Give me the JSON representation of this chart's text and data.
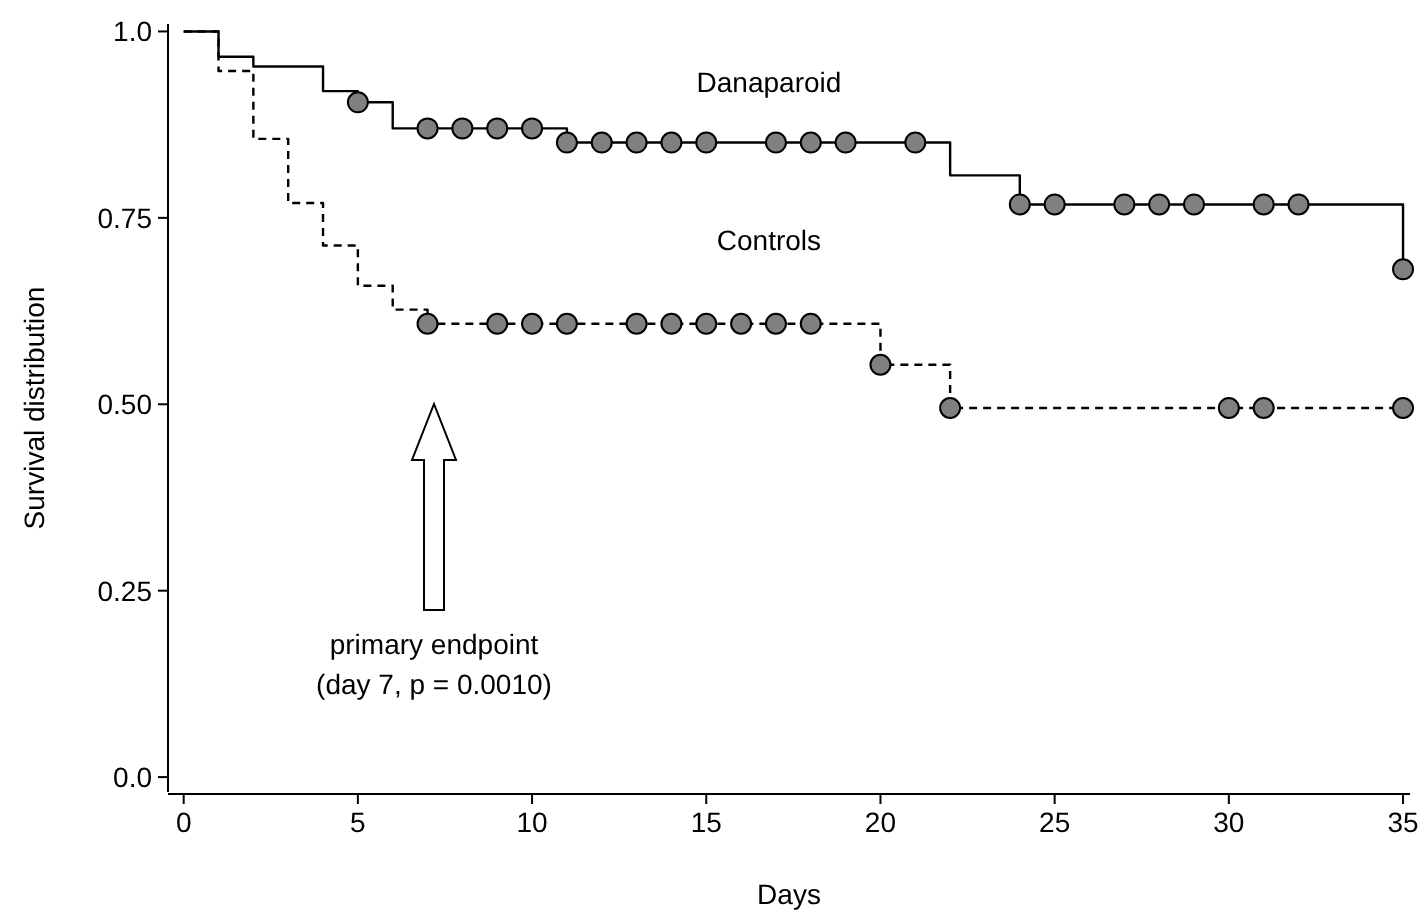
{
  "chart_data": {
    "type": "step",
    "xlabel": "Days",
    "ylabel": "Survival distribution",
    "xlim": [
      -0.45,
      35.2
    ],
    "xticks": [
      0,
      5,
      10,
      15,
      20,
      25,
      30,
      35
    ],
    "ylim": [
      -0.02,
      1.01
    ],
    "yticks": [
      {
        "value": 0,
        "label": "0.0"
      },
      {
        "value": 0.25,
        "label": "0.25"
      },
      {
        "value": 0.5,
        "label": "0.50"
      },
      {
        "value": 0.75,
        "label": "0.75"
      },
      {
        "value": 1,
        "label": "1.0"
      }
    ],
    "grid": false,
    "series": [
      {
        "name": "Danaparoid",
        "color": "#000000",
        "line_style": "solid",
        "marker": "none",
        "x": [
          0,
          1,
          2,
          4,
          5,
          6,
          11,
          22,
          24,
          35
        ],
        "values": [
          1,
          0.966,
          0.953,
          0.92,
          0.905,
          0.87,
          0.851,
          0.807,
          0.768,
          0.681
        ]
      },
      {
        "name": "Controls",
        "color": "#000000",
        "line_style": "dashed",
        "marker": "none",
        "x": [
          0,
          1,
          2,
          3,
          4,
          5,
          6,
          7,
          20,
          22,
          35
        ],
        "values": [
          1,
          0.947,
          0.856,
          0.77,
          0.713,
          0.659,
          0.627,
          0.608,
          0.553,
          0.495,
          0.495
        ]
      },
      {
        "type": "scatter",
        "color": "#808080",
        "marker": "circle",
        "x": [
          5,
          7,
          8,
          9,
          10,
          11,
          12,
          13,
          14,
          15,
          17,
          18,
          19,
          21,
          24,
          25,
          27,
          28,
          29,
          31,
          32,
          35
        ],
        "values": [
          0.905,
          0.87,
          0.87,
          0.87,
          0.87,
          0.851,
          0.851,
          0.851,
          0.851,
          0.851,
          0.851,
          0.851,
          0.851,
          0.851,
          0.768,
          0.768,
          0.768,
          0.768,
          0.768,
          0.768,
          0.768,
          0.681
        ]
      },
      {
        "type": "scatter",
        "color": "#808080",
        "marker": "circle",
        "x": [
          7,
          9,
          10,
          11,
          13,
          14,
          15,
          16,
          17,
          18,
          20,
          22,
          30,
          31,
          35
        ],
        "values": [
          0.608,
          0.608,
          0.608,
          0.608,
          0.608,
          0.608,
          0.608,
          0.608,
          0.608,
          0.608,
          0.553,
          0.495,
          0.495,
          0.495,
          0.495
        ]
      }
    ],
    "annotations": [
      "primary endpoint\n(day 7, p = 0.0010)"
    ]
  }
}
